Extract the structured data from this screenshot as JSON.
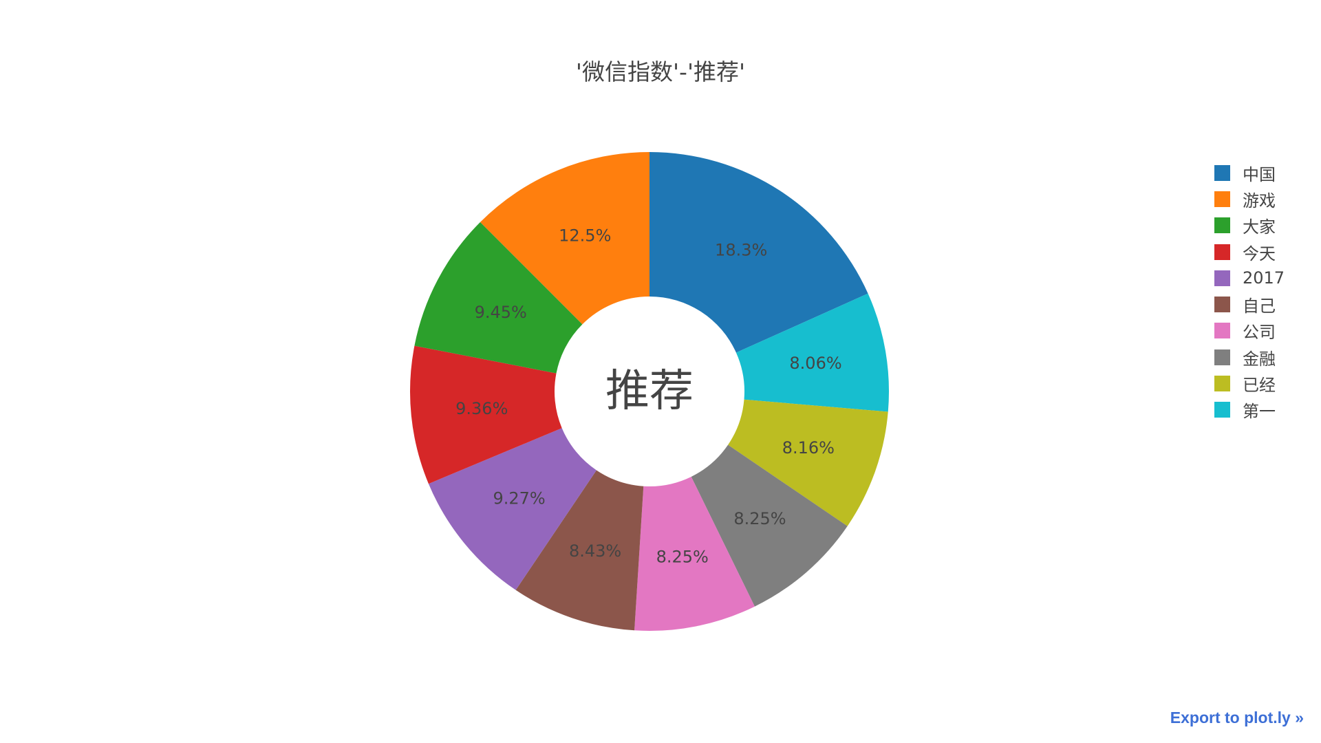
{
  "chart_data": {
    "type": "pie",
    "title": "'微信指数'-'推荐'",
    "hole_label": "推荐",
    "labels": [
      "中国",
      "游戏",
      "大家",
      "今天",
      "2017",
      "自己",
      "公司",
      "金融",
      "已经",
      "第一"
    ],
    "values": [
      18.3,
      12.5,
      9.45,
      9.36,
      9.27,
      8.43,
      8.25,
      8.25,
      8.16,
      8.06
    ],
    "text_labels": [
      "18.3%",
      "12.5%",
      "9.45%",
      "9.36%",
      "9.27%",
      "8.43%",
      "8.25%",
      "8.25%",
      "8.16%",
      "8.06%"
    ],
    "colors": [
      "#1f77b4",
      "#ff7f0e",
      "#2ca02c",
      "#d62728",
      "#9467bd",
      "#8c564b",
      "#e377c2",
      "#7f7f7f",
      "#bcbd22",
      "#17becf"
    ],
    "direction": "clockwise",
    "sort": "descending",
    "hole": true,
    "legend_position": "right"
  },
  "export_link_label": "Export to plot.ly »"
}
